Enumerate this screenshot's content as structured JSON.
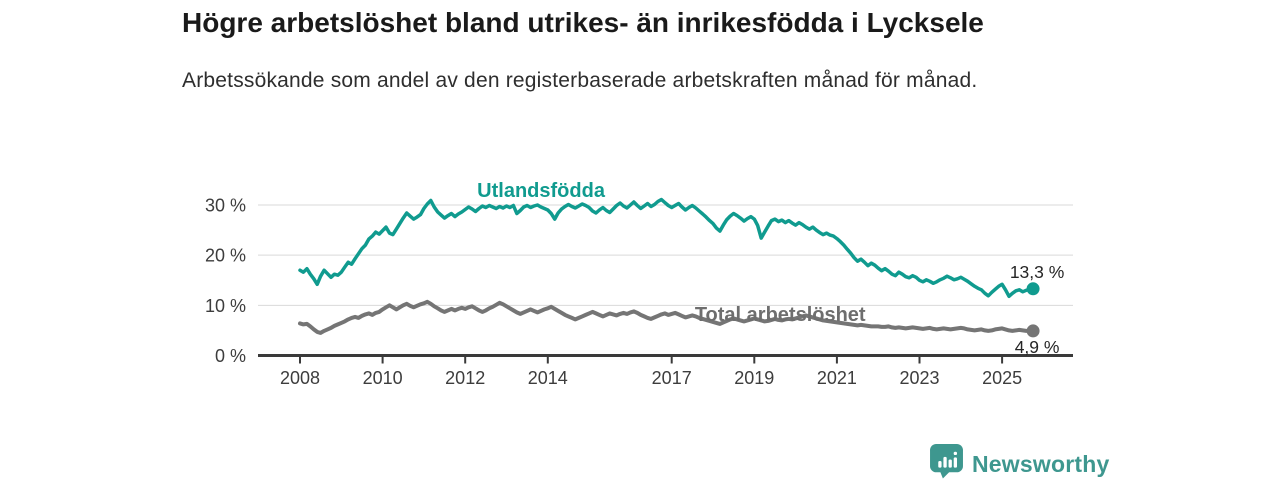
{
  "header": {
    "title": "Högre arbetslöshet bland utrikes- än inrikesfödda i Lycksele",
    "subtitle": "Arbetssökande som andel av den registerbaserade arbetskraften månad för månad."
  },
  "branding": {
    "logo_text": "Newsworthy",
    "logo_color": "#3e978f",
    "logo_icon": "bar-chart-speech-bubble"
  },
  "colors": {
    "accent_teal": "#109b8f",
    "series_gray": "#757575",
    "axis": "#3a3a3a",
    "gridline": "#d9d9d9",
    "tick_text": "#3d3d3d",
    "value_label_text": "#262626"
  },
  "chart_data": {
    "type": "line",
    "title": "Högre arbetslöshet bland utrikes- än inrikesfödda i Lycksele",
    "subtitle": "Arbetssökande som andel av den registerbaserade arbetskraften månad för månad.",
    "unit": "%",
    "grid": "horizontal",
    "xlim": [
      2007.85,
      2026.1
    ],
    "ylim": [
      0,
      32
    ],
    "x_start": 2008.0,
    "x_step_years": 0.0833333,
    "x_ticks": [
      2008,
      2010,
      2012,
      2014,
      2017,
      2019,
      2021,
      2023,
      2025
    ],
    "y_ticks": [
      {
        "value": 0,
        "label": "0 %"
      },
      {
        "value": 10,
        "label": "10 %"
      },
      {
        "value": 20,
        "label": "20 %"
      },
      {
        "value": 30,
        "label": "30 %"
      }
    ],
    "series": [
      {
        "name": "Utlandsfödda",
        "color": "#109b8f",
        "width": 3.5,
        "end_label": "13,3 %",
        "end_value": 13.3,
        "values": [
          17.0,
          16.6,
          17.3,
          16.2,
          15.3,
          14.2,
          15.8,
          17.0,
          16.3,
          15.6,
          16.2,
          16.0,
          16.6,
          17.6,
          18.6,
          18.2,
          19.3,
          20.3,
          21.3,
          22.0,
          23.2,
          23.8,
          24.6,
          24.2,
          24.9,
          25.6,
          24.4,
          24.1,
          25.2,
          26.3,
          27.4,
          28.4,
          27.8,
          27.2,
          27.6,
          28.1,
          29.3,
          30.2,
          30.9,
          29.6,
          28.6,
          28.0,
          27.4,
          27.9,
          28.3,
          27.7,
          28.2,
          28.6,
          29.1,
          29.6,
          29.2,
          28.7,
          29.3,
          29.8,
          29.5,
          29.9,
          29.6,
          29.3,
          29.7,
          29.4,
          29.8,
          29.5,
          29.9,
          28.3,
          28.9,
          29.6,
          29.9,
          29.5,
          29.8,
          30.0,
          29.6,
          29.3,
          29.0,
          28.3,
          27.2,
          28.4,
          29.2,
          29.7,
          30.1,
          29.7,
          29.4,
          29.8,
          30.2,
          29.9,
          29.5,
          28.8,
          28.4,
          29.0,
          29.5,
          28.9,
          28.5,
          29.2,
          29.9,
          30.4,
          29.8,
          29.4,
          30.0,
          30.6,
          29.9,
          29.3,
          29.8,
          30.3,
          29.7,
          30.1,
          30.7,
          31.1,
          30.5,
          29.9,
          29.5,
          29.9,
          30.3,
          29.6,
          29.0,
          29.5,
          29.9,
          29.4,
          28.8,
          28.2,
          27.6,
          26.9,
          26.3,
          25.4,
          24.8,
          26.0,
          27.1,
          27.8,
          28.3,
          27.9,
          27.4,
          26.8,
          27.3,
          27.7,
          27.2,
          25.9,
          23.4,
          24.6,
          25.8,
          26.9,
          27.2,
          26.7,
          27.0,
          26.5,
          26.9,
          26.4,
          26.0,
          26.5,
          26.1,
          25.6,
          25.2,
          25.6,
          25.0,
          24.5,
          24.1,
          24.4,
          24.0,
          23.8,
          23.3,
          22.7,
          22.0,
          21.2,
          20.4,
          19.5,
          18.8,
          19.2,
          18.6,
          17.9,
          18.4,
          18.0,
          17.4,
          16.9,
          17.3,
          16.8,
          16.2,
          15.9,
          16.6,
          16.2,
          15.7,
          15.5,
          15.9,
          15.6,
          15.0,
          14.7,
          15.1,
          14.8,
          14.4,
          14.7,
          15.1,
          15.4,
          15.8,
          15.5,
          15.1,
          15.3,
          15.6,
          15.2,
          14.8,
          14.3,
          13.8,
          13.4,
          13.1,
          12.4,
          11.9,
          12.6,
          13.2,
          13.8,
          14.2,
          13.1,
          11.8,
          12.4,
          12.9,
          13.1,
          12.7,
          13.0,
          13.2,
          13.3
        ]
      },
      {
        "name": "Total arbetslöshet",
        "color": "#757575",
        "width": 4,
        "end_label": "4,9 %",
        "end_value": 4.9,
        "values": [
          6.4,
          6.2,
          6.3,
          5.8,
          5.2,
          4.7,
          4.5,
          4.9,
          5.2,
          5.5,
          5.9,
          6.2,
          6.5,
          6.8,
          7.2,
          7.5,
          7.7,
          7.5,
          7.9,
          8.2,
          8.4,
          8.1,
          8.5,
          8.7,
          9.2,
          9.6,
          10.0,
          9.6,
          9.2,
          9.6,
          10.0,
          10.3,
          9.9,
          9.6,
          9.9,
          10.2,
          10.4,
          10.7,
          10.3,
          9.8,
          9.4,
          9.0,
          8.7,
          9.0,
          9.3,
          9.0,
          9.3,
          9.5,
          9.3,
          9.6,
          9.8,
          9.4,
          9.0,
          8.7,
          9.0,
          9.4,
          9.7,
          10.1,
          10.5,
          10.2,
          9.8,
          9.4,
          9.0,
          8.6,
          8.3,
          8.6,
          8.9,
          9.2,
          8.9,
          8.6,
          8.9,
          9.2,
          9.4,
          9.7,
          9.3,
          8.9,
          8.5,
          8.1,
          7.8,
          7.5,
          7.2,
          7.5,
          7.8,
          8.1,
          8.4,
          8.7,
          8.4,
          8.1,
          7.8,
          8.1,
          8.4,
          8.2,
          8.0,
          8.3,
          8.5,
          8.3,
          8.6,
          8.8,
          8.5,
          8.1,
          7.8,
          7.5,
          7.3,
          7.6,
          7.9,
          8.2,
          8.4,
          8.1,
          8.3,
          8.5,
          8.2,
          7.9,
          7.6,
          7.8,
          8.0,
          7.8,
          7.5,
          7.3,
          7.1,
          6.9,
          6.7,
          6.5,
          6.3,
          6.6,
          6.9,
          7.2,
          7.4,
          7.2,
          7.0,
          6.8,
          7.0,
          7.2,
          7.4,
          7.2,
          7.0,
          6.8,
          6.9,
          7.1,
          7.3,
          7.1,
          7.0,
          7.2,
          7.3,
          7.2,
          7.4,
          7.6,
          7.8,
          8.0,
          7.8,
          7.6,
          7.4,
          7.2,
          7.0,
          6.9,
          6.8,
          6.7,
          6.6,
          6.5,
          6.4,
          6.3,
          6.2,
          6.1,
          6.0,
          6.1,
          6.0,
          5.9,
          5.8,
          5.8,
          5.8,
          5.7,
          5.7,
          5.8,
          5.6,
          5.5,
          5.6,
          5.5,
          5.4,
          5.5,
          5.6,
          5.5,
          5.4,
          5.3,
          5.4,
          5.5,
          5.3,
          5.2,
          5.3,
          5.4,
          5.3,
          5.2,
          5.3,
          5.4,
          5.5,
          5.4,
          5.2,
          5.1,
          5.0,
          5.1,
          5.2,
          5.0,
          4.9,
          5.0,
          5.2,
          5.3,
          5.4,
          5.2,
          5.0,
          4.9,
          5.0,
          5.1,
          5.0,
          4.9,
          4.9,
          4.9
        ]
      }
    ],
    "annotations": [
      {
        "text": "Utlandsfödda",
        "t": 2012.29,
        "v": 31.6,
        "dx": 0,
        "dy": 0,
        "color": "#109b8f",
        "bold": true,
        "size": 20,
        "anchor": "start"
      },
      {
        "text": "Total arbetslöshet",
        "t": 2017.56,
        "v": 6.9,
        "dx": 0,
        "dy": 0,
        "color": "#6e6e6e",
        "bold": true,
        "size": 20,
        "anchor": "start"
      },
      {
        "text": "13,3 %",
        "t": 2025.75,
        "v": 15.45,
        "dx": 4,
        "dy": 0,
        "color": "#262626",
        "bold": false,
        "size": 17.5,
        "anchor": "middle"
      },
      {
        "text": "4,9 %",
        "t": 2025.75,
        "v": 0.5,
        "dx": 4,
        "dy": 0,
        "color": "#262626",
        "bold": false,
        "size": 17.5,
        "anchor": "middle"
      }
    ]
  }
}
